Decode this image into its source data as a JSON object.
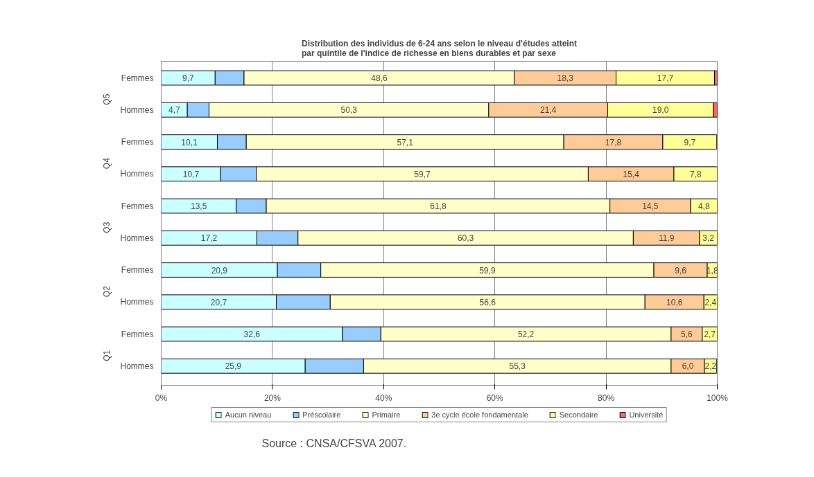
{
  "chart_data": {
    "type": "bar",
    "orientation": "horizontal",
    "stacked": true,
    "title": "Distribution des individus de 6-24 ans selon le niveau d'études atteint\npar quintile de l'indice de richesse en biens durables et par sexe",
    "categories": [
      "Femmes",
      "Hommes",
      "Femmes",
      "Hommes",
      "Femmes",
      "Hommes",
      "Femmes",
      "Hommes",
      "Femmes",
      "Hommes"
    ],
    "series": [
      {
        "name": "Aucun niveau",
        "color": "#ccffff",
        "values": [
          9.7,
          4.7,
          10.1,
          10.7,
          13.5,
          17.2,
          20.9,
          20.7,
          32.6,
          25.9
        ],
        "value_labels": [
          "9,7",
          "4,7",
          "10,1",
          "10,7",
          "13,5",
          "17,2",
          "20,9",
          "20,7",
          "32,6",
          "25,9"
        ]
      },
      {
        "name": "Préscolaire",
        "color": "#99ccff",
        "values": [
          5.2,
          3.9,
          5.2,
          6.4,
          5.4,
          7.4,
          7.8,
          9.7,
          6.9,
          10.5
        ]
      },
      {
        "name": "Primaire",
        "color": "#ffffcc",
        "values": [
          48.6,
          50.3,
          57.1,
          59.7,
          61.8,
          60.3,
          59.9,
          56.6,
          52.2,
          55.3
        ],
        "value_labels": [
          "48,6",
          "50,3",
          "57,1",
          "59,7",
          "61,8",
          "60,3",
          "59,9",
          "56,6",
          "52,2",
          "55,3"
        ]
      },
      {
        "name": "3e cycle école fondamentale",
        "color": "#ffcc99",
        "values": [
          18.3,
          21.4,
          17.8,
          15.4,
          14.5,
          11.9,
          9.6,
          10.6,
          5.6,
          6.0
        ],
        "value_labels": [
          "18,3",
          "21,4",
          "17,8",
          "15,4",
          "14,5",
          "11,9",
          "9,6",
          "10,6",
          "5,6",
          "6,0"
        ]
      },
      {
        "name": "Secondaire",
        "color": "#ffff99",
        "values": [
          17.7,
          19.0,
          9.7,
          7.8,
          4.8,
          3.2,
          1.8,
          2.4,
          2.7,
          2.2
        ],
        "value_labels": [
          "17,7",
          "19,0",
          "9,7",
          "7,8",
          "4,8",
          "3,2",
          "1,8",
          "2,4",
          "2,7",
          "2,2"
        ]
      },
      {
        "name": "Université",
        "color": "#ff6666",
        "values": [
          0.5,
          0.7,
          null,
          null,
          null,
          null,
          null,
          null,
          null,
          null
        ]
      }
    ],
    "xlim": [
      0,
      100
    ],
    "xticks": [
      {
        "value": 0,
        "label": "0%"
      },
      {
        "value": 20,
        "label": "20%"
      },
      {
        "value": 40,
        "label": "40%"
      },
      {
        "value": 60,
        "label": "60%"
      },
      {
        "value": 80,
        "label": "80%"
      },
      {
        "value": 100,
        "label": "100%"
      }
    ],
    "grid": "x",
    "legend": "bottom",
    "annotations": [
      "Q5",
      "Q4",
      "Q3",
      "Q2",
      "Q1",
      "Source : CNSA/CFSVA 2007."
    ]
  }
}
